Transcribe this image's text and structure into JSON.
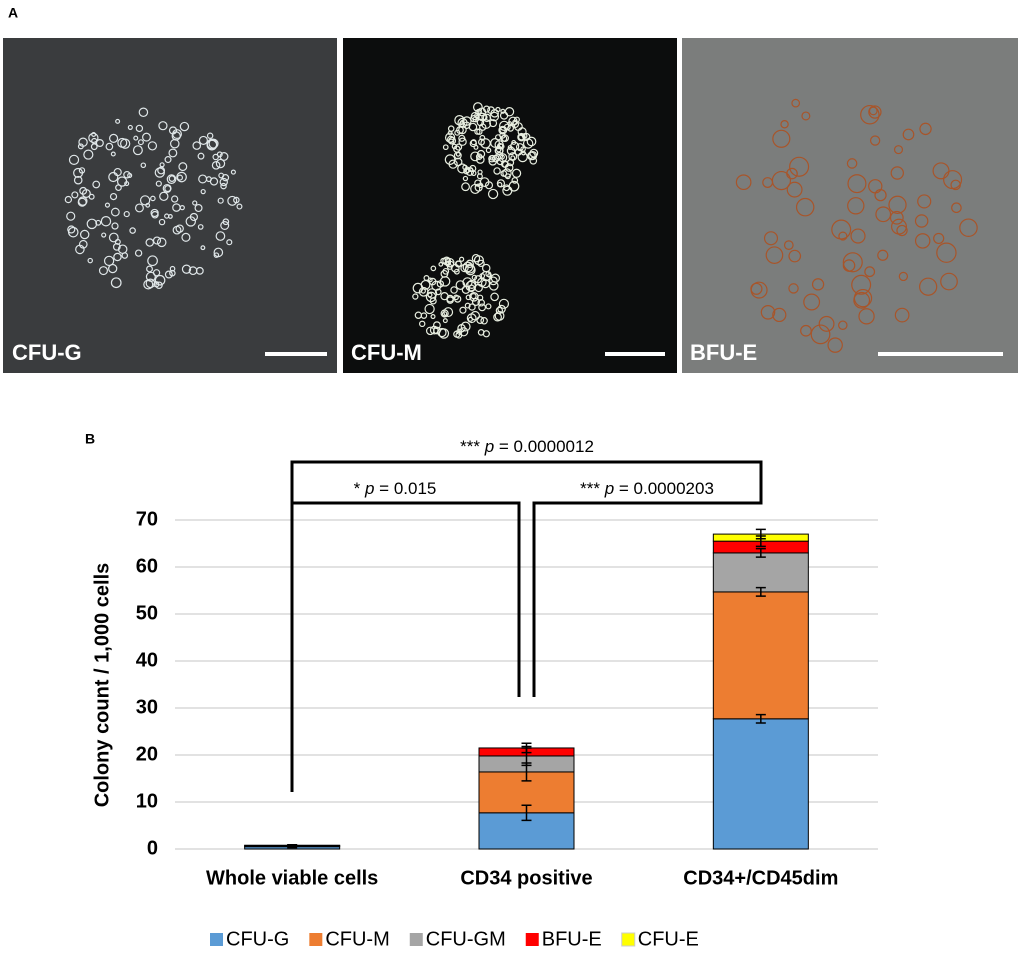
{
  "panel_a": {
    "label": "A",
    "images": [
      {
        "label": "CFU-G"
      },
      {
        "label": "CFU-M"
      },
      {
        "label": "BFU-E"
      }
    ]
  },
  "chart_data": {
    "type": "stacked_bar",
    "panel_label": "B",
    "ylabel": "Colony count / 1,000 cells",
    "categories": [
      "Whole viable cells",
      "CD34 positive",
      "CD34+/CD45dim"
    ],
    "series": [
      {
        "name": "CFU-G",
        "color": "#5b9bd5",
        "values": [
          0.5,
          7.7,
          27.7
        ],
        "errors": [
          0.2,
          1.6,
          0.9
        ]
      },
      {
        "name": "CFU-M",
        "color": "#ed7d31",
        "values": [
          0.2,
          8.7,
          27.0
        ],
        "errors": [
          0.1,
          1.9,
          0.9
        ]
      },
      {
        "name": "CFU-GM",
        "color": "#a5a5a5",
        "values": [
          0.1,
          3.4,
          8.3
        ],
        "errors": [
          0.1,
          2.0,
          0.9
        ]
      },
      {
        "name": "BFU-E",
        "color": "#ff0000",
        "values": [
          0,
          1.7,
          2.5
        ],
        "errors": [
          0,
          1.0,
          1.1
        ]
      },
      {
        "name": "CFU-E",
        "color": "#ffff00",
        "values": [
          0,
          0,
          1.5
        ],
        "errors": [
          0,
          0,
          1.0
        ]
      }
    ],
    "ylim": [
      0,
      70
    ],
    "yticks": [
      0,
      10,
      20,
      30,
      40,
      50,
      60,
      70
    ],
    "grid": true,
    "annotations": [
      {
        "stars": "***",
        "p": "p",
        "text": "= 0.0000012"
      },
      {
        "stars": "*",
        "p": "p",
        "text": "= 0.015"
      },
      {
        "stars": "***",
        "p": "p",
        "text": "= 0.0000203"
      }
    ]
  }
}
